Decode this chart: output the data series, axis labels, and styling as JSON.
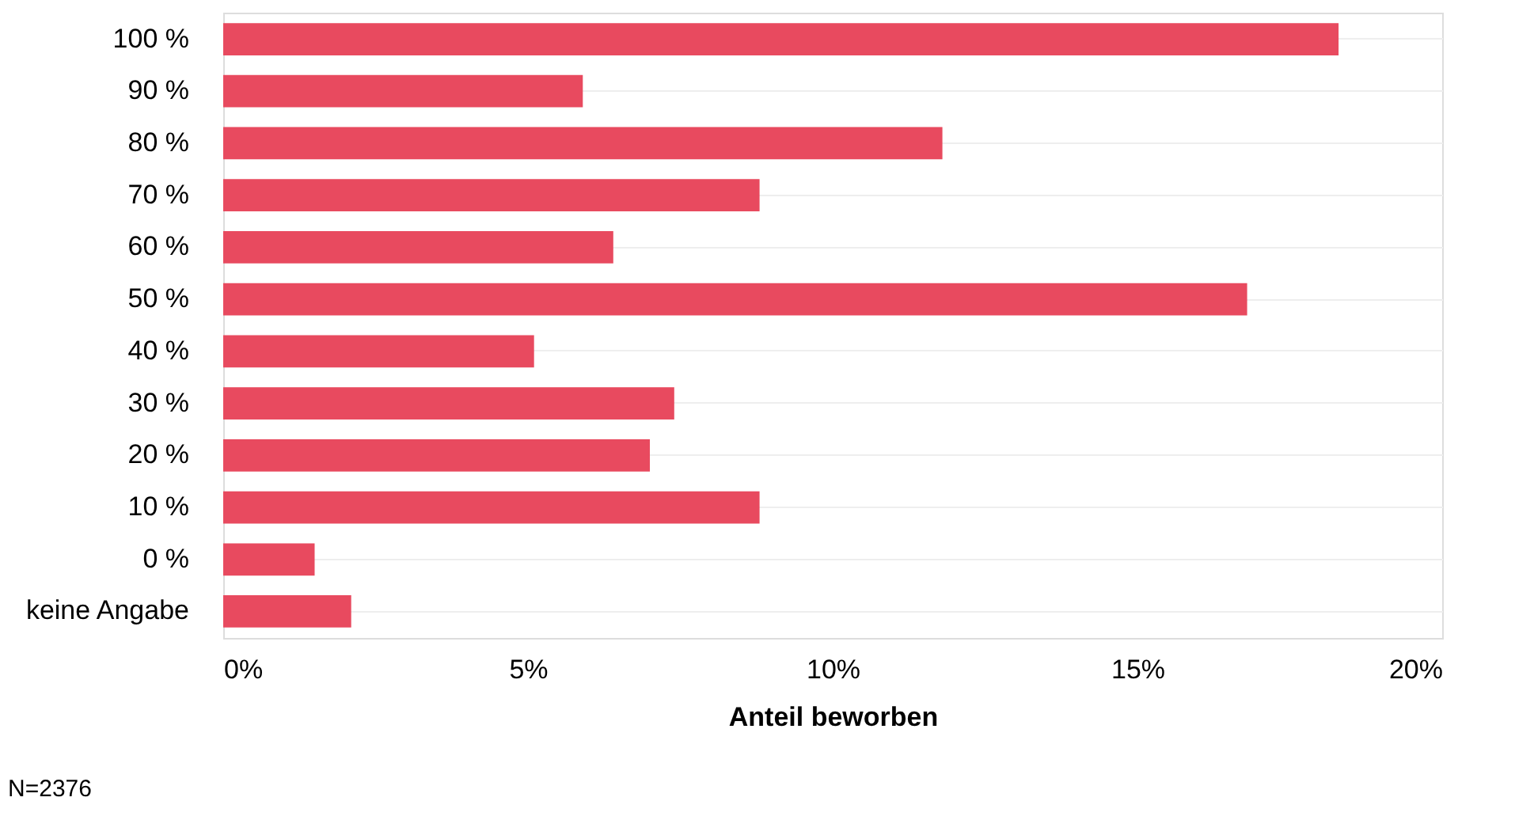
{
  "chart_data": {
    "type": "bar",
    "orientation": "horizontal",
    "xlabel": "Anteil beworben",
    "categories": [
      "100 %",
      "90 %",
      "80 %",
      "70 %",
      "60 %",
      "50 %",
      "40 %",
      "30 %",
      "20 %",
      "10 %",
      "0 %",
      "keine Angabe"
    ],
    "values": [
      18.3,
      5.9,
      11.8,
      8.8,
      6.4,
      16.8,
      5.1,
      7.4,
      7.0,
      8.8,
      1.5,
      2.1
    ],
    "color": "#e84a5f",
    "xlim": [
      0,
      20
    ],
    "xticks": [
      {
        "value": 0,
        "label": "0%"
      },
      {
        "value": 5,
        "label": "5%"
      },
      {
        "value": 10,
        "label": "10%"
      },
      {
        "value": 15,
        "label": "15%"
      },
      {
        "value": 20,
        "label": "20%"
      }
    ],
    "grid": "y",
    "annotations": [
      "N=2376"
    ]
  }
}
